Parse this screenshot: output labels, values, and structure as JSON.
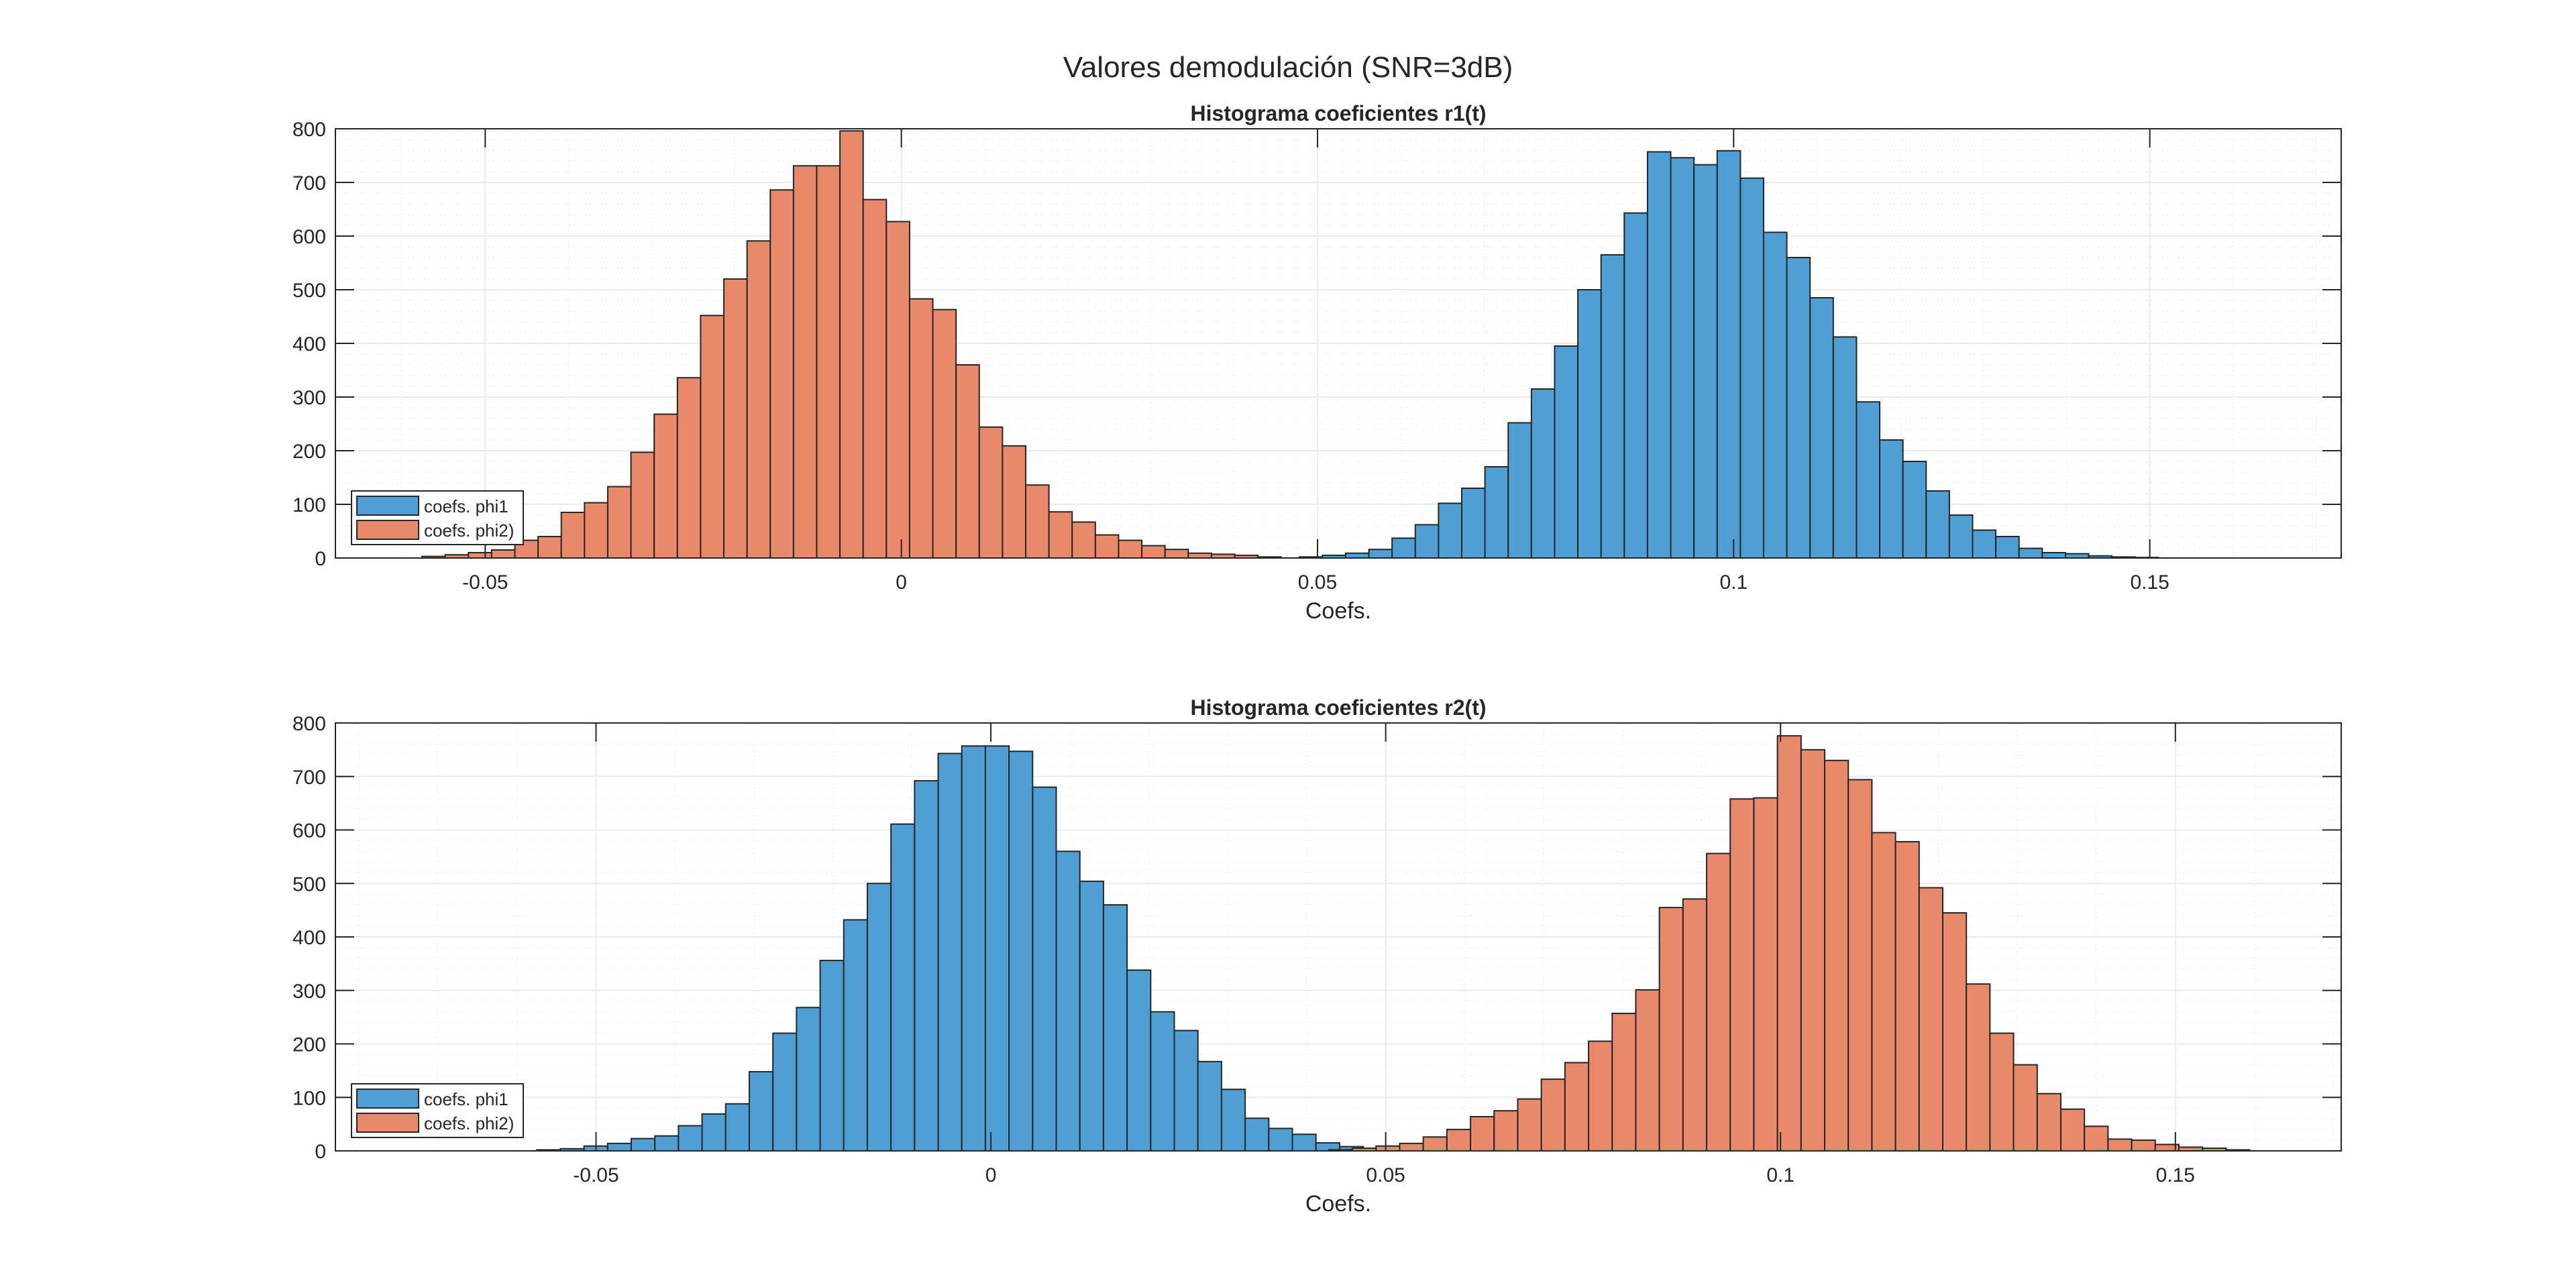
{
  "figure": {
    "title": "Valores demodulación (SNR=3dB)",
    "colors": {
      "phi1": "#4f9fd4",
      "phi2": "#e8896b",
      "edge": "#262626",
      "grid": "#ececec",
      "axis": "#262626"
    }
  },
  "chart_data": [
    {
      "type": "bar",
      "title": "Histograma coeficientes r1(t)",
      "xlabel": "Coefs.",
      "ylabel": "",
      "xlim": [
        -0.068,
        0.173
      ],
      "ylim": [
        0,
        800
      ],
      "xticks": [
        -0.05,
        0,
        0.05,
        0.1,
        0.15
      ],
      "xtick_labels": [
        "-0.05",
        "0",
        "0.05",
        "0.1",
        "0.15"
      ],
      "yticks": [
        0,
        100,
        200,
        300,
        400,
        500,
        600,
        700,
        800
      ],
      "ytick_labels": [
        "0",
        "100",
        "200",
        "300",
        "400",
        "500",
        "600",
        "700",
        "800"
      ],
      "grid": true,
      "minor_grid": true,
      "legend_position": "bottom-left",
      "series": [
        {
          "name": "coefs. phi1",
          "color_key": "phi1",
          "bin_start": 0.0478,
          "bin_width": 0.00279,
          "values": [
            2,
            5,
            9,
            16,
            37,
            62,
            102,
            130,
            170,
            252,
            315,
            395,
            500,
            565,
            643,
            757,
            746,
            733,
            759,
            708,
            607,
            560,
            485,
            412,
            291,
            220,
            180,
            125,
            80,
            52,
            40,
            18,
            10,
            8,
            4,
            2,
            1
          ]
        },
        {
          "name": "coefs. phi2)",
          "color_key": "phi2",
          "bin_start": -0.0576,
          "bin_width": 0.00279,
          "values": [
            3,
            6,
            10,
            15,
            33,
            40,
            85,
            103,
            133,
            197,
            268,
            336,
            452,
            520,
            591,
            686,
            731,
            731,
            796,
            668,
            627,
            483,
            463,
            360,
            244,
            209,
            136,
            86,
            67,
            43,
            33,
            23,
            16,
            9,
            7,
            5,
            2
          ]
        }
      ]
    },
    {
      "type": "bar",
      "title": "Histograma coeficientes r2(t)",
      "xlabel": "Coefs.",
      "ylabel": "",
      "xlim": [
        -0.083,
        0.171
      ],
      "ylim": [
        0,
        800
      ],
      "xticks": [
        -0.05,
        0,
        0.05,
        0.1,
        0.15
      ],
      "xtick_labels": [
        "-0.05",
        "0",
        "0.05",
        "0.1",
        "0.15"
      ],
      "yticks": [
        0,
        100,
        200,
        300,
        400,
        500,
        600,
        700,
        800
      ],
      "ytick_labels": [
        "0",
        "100",
        "200",
        "300",
        "400",
        "500",
        "600",
        "700",
        "800"
      ],
      "grid": true,
      "minor_grid": true,
      "legend_position": "bottom-left",
      "series": [
        {
          "name": "coefs. phi1",
          "color_key": "phi1",
          "bin_start": -0.0575,
          "bin_width": 0.00299,
          "values": [
            2,
            4,
            9,
            14,
            23,
            28,
            47,
            69,
            88,
            148,
            220,
            268,
            356,
            432,
            500,
            611,
            692,
            743,
            757,
            757,
            747,
            680,
            560,
            504,
            460,
            338,
            260,
            225,
            167,
            115,
            61,
            42,
            31,
            15,
            8,
            4,
            2
          ]
        },
        {
          "name": "coefs. phi2)",
          "color_key": "phi2",
          "bin_start": 0.0428,
          "bin_width": 0.00299,
          "values": [
            2,
            5,
            9,
            14,
            26,
            40,
            64,
            75,
            97,
            134,
            165,
            205,
            257,
            301,
            455,
            471,
            556,
            658,
            660,
            776,
            750,
            730,
            694,
            595,
            578,
            492,
            445,
            312,
            220,
            161,
            107,
            78,
            46,
            22,
            20,
            12,
            7,
            5,
            2
          ]
        }
      ]
    }
  ]
}
